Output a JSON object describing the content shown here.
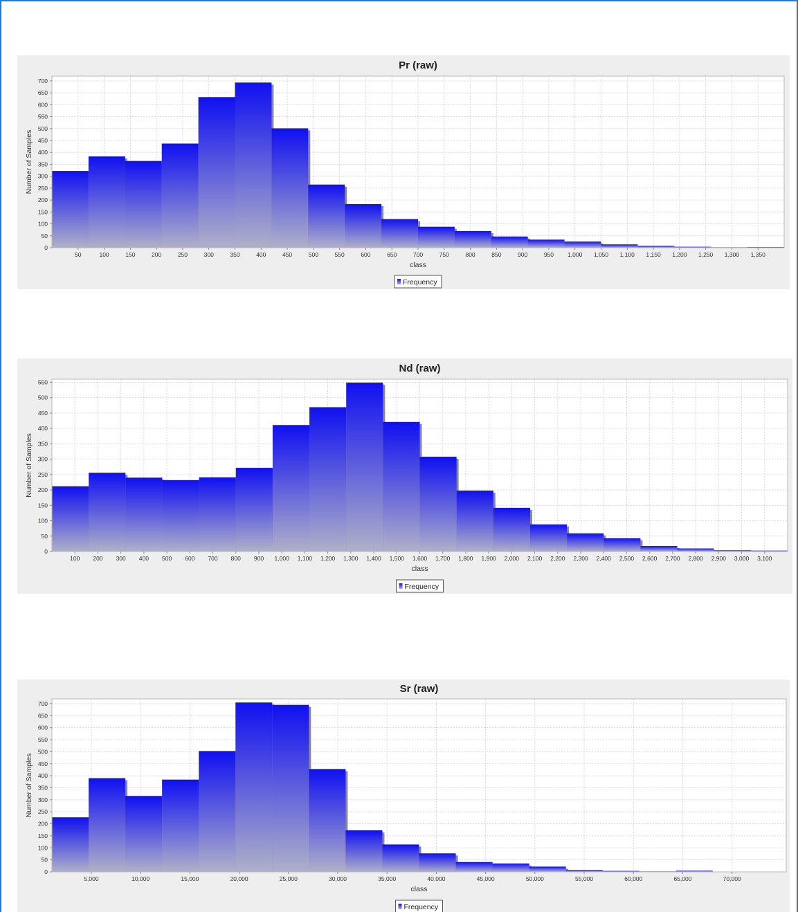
{
  "chart_data": [
    {
      "type": "bar",
      "title": "Pr (raw)",
      "xlabel": "class",
      "ylabel": "Number of Samples",
      "legend": "Frequency",
      "bin_start": 0,
      "bin_width": 70,
      "values": [
        322,
        383,
        364,
        437,
        632,
        693,
        501,
        265,
        183,
        120,
        88,
        70,
        47,
        34,
        26,
        14,
        8,
        4,
        2,
        3
      ],
      "xlim": [
        0,
        1400
      ],
      "ylim": [
        0,
        720
      ],
      "xticks": [
        50,
        100,
        150,
        200,
        250,
        300,
        350,
        400,
        450,
        500,
        550,
        600,
        650,
        700,
        750,
        800,
        850,
        900,
        950,
        1000,
        1050,
        1100,
        1150,
        1200,
        1250,
        1300,
        1350
      ],
      "xtick_labels": [
        "50",
        "100",
        "150",
        "200",
        "250",
        "300",
        "350",
        "400",
        "450",
        "500",
        "550",
        "600",
        "650",
        "700",
        "750",
        "800",
        "850",
        "900",
        "950",
        "1,000",
        "1,050",
        "1,100",
        "1,150",
        "1,200",
        "1,250",
        "1,300",
        "1,350"
      ],
      "yticks": [
        0,
        50,
        100,
        150,
        200,
        250,
        300,
        350,
        400,
        450,
        500,
        550,
        600,
        650,
        700
      ],
      "ytick_labels": [
        "0",
        "50",
        "100",
        "150",
        "200",
        "250",
        "300",
        "350",
        "400",
        "450",
        "500",
        "550",
        "600",
        "650",
        "700"
      ],
      "grid": true,
      "legend_position": "bottom"
    },
    {
      "type": "bar",
      "title": "Nd (raw)",
      "xlabel": "class",
      "ylabel": "Number of Samples",
      "legend": "Frequency",
      "bin_start": 0,
      "bin_width": 160,
      "values": [
        212,
        256,
        240,
        232,
        241,
        272,
        411,
        469,
        549,
        421,
        308,
        198,
        142,
        88,
        59,
        43,
        18,
        10,
        4,
        3
      ],
      "xlim": [
        0,
        3200
      ],
      "ylim": [
        0,
        560
      ],
      "xticks": [
        100,
        200,
        300,
        400,
        500,
        600,
        700,
        800,
        900,
        1000,
        1100,
        1200,
        1300,
        1400,
        1500,
        1600,
        1700,
        1800,
        1900,
        2000,
        2100,
        2200,
        2300,
        2400,
        2500,
        2600,
        2700,
        2800,
        2900,
        3000,
        3100
      ],
      "xtick_labels": [
        "100",
        "200",
        "300",
        "400",
        "500",
        "600",
        "700",
        "800",
        "900",
        "1,000",
        "1,100",
        "1,200",
        "1,300",
        "1,400",
        "1,500",
        "1,600",
        "1,700",
        "1,800",
        "1,900",
        "2,000",
        "2,100",
        "2,200",
        "2,300",
        "2,400",
        "2,500",
        "2,600",
        "2,700",
        "2,800",
        "2,900",
        "3,000",
        "3,100"
      ],
      "yticks": [
        0,
        50,
        100,
        150,
        200,
        250,
        300,
        350,
        400,
        450,
        500,
        550
      ],
      "ytick_labels": [
        "0",
        "50",
        "100",
        "150",
        "200",
        "250",
        "300",
        "350",
        "400",
        "450",
        "500",
        "550"
      ],
      "grid": true,
      "legend_position": "bottom"
    },
    {
      "type": "bar",
      "title": "Sr (raw)",
      "xlabel": "class",
      "ylabel": "Number of Samples",
      "legend": "Frequency",
      "bin_start": 1000,
      "bin_width": 3725,
      "values": [
        227,
        390,
        316,
        384,
        503,
        705,
        695,
        428,
        173,
        114,
        77,
        41,
        35,
        22,
        8,
        4,
        2,
        5,
        1,
        1
      ],
      "xlim": [
        1000,
        75500
      ],
      "ylim": [
        0,
        720
      ],
      "xticks": [
        5000,
        10000,
        15000,
        20000,
        25000,
        30000,
        35000,
        40000,
        45000,
        50000,
        55000,
        60000,
        65000,
        70000
      ],
      "xtick_labels": [
        "5,000",
        "10,000",
        "15,000",
        "20,000",
        "25,000",
        "30,000",
        "35,000",
        "40,000",
        "45,000",
        "50,000",
        "55,000",
        "60,000",
        "65,000",
        "70,000"
      ],
      "yticks": [
        0,
        50,
        100,
        150,
        200,
        250,
        300,
        350,
        400,
        450,
        500,
        550,
        600,
        650,
        700
      ],
      "ytick_labels": [
        "0",
        "50",
        "100",
        "150",
        "200",
        "250",
        "300",
        "350",
        "400",
        "450",
        "500",
        "550",
        "600",
        "650",
        "700"
      ],
      "grid": true,
      "legend_position": "bottom"
    }
  ],
  "colors": {
    "bar_top": "#1010f0",
    "bar_bottom": "#b0b0c8",
    "bar_shadow": "#8a8a8a",
    "panel_background": "#eeeeee",
    "plot_background": "#ffffff",
    "frame_border": "#2a78c8",
    "gridline": "#d0d0d0"
  }
}
